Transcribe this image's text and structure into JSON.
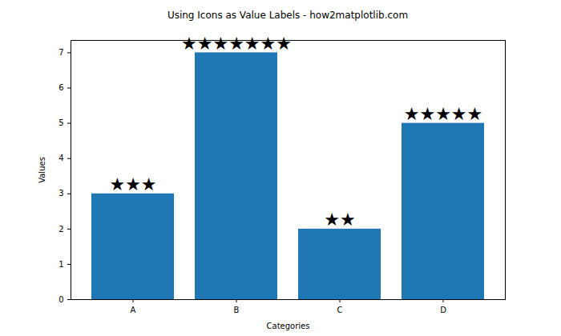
{
  "chart_data": {
    "type": "bar",
    "title": "Using Icons as Value Labels - how2matplotlib.com",
    "x_label": "Categories",
    "y_label": "Values",
    "categories": [
      "A",
      "B",
      "C",
      "D"
    ],
    "values": [
      3,
      7,
      2,
      5
    ],
    "value_labels": [
      "★★★",
      "★★★★★★★",
      "★★",
      "★★★★★"
    ],
    "data_labels": true,
    "color": "#1f77b4",
    "ylim": [
      0,
      7.35
    ],
    "yticks": [
      0,
      1,
      2,
      3,
      4,
      5,
      6,
      7
    ],
    "grid": false
  }
}
